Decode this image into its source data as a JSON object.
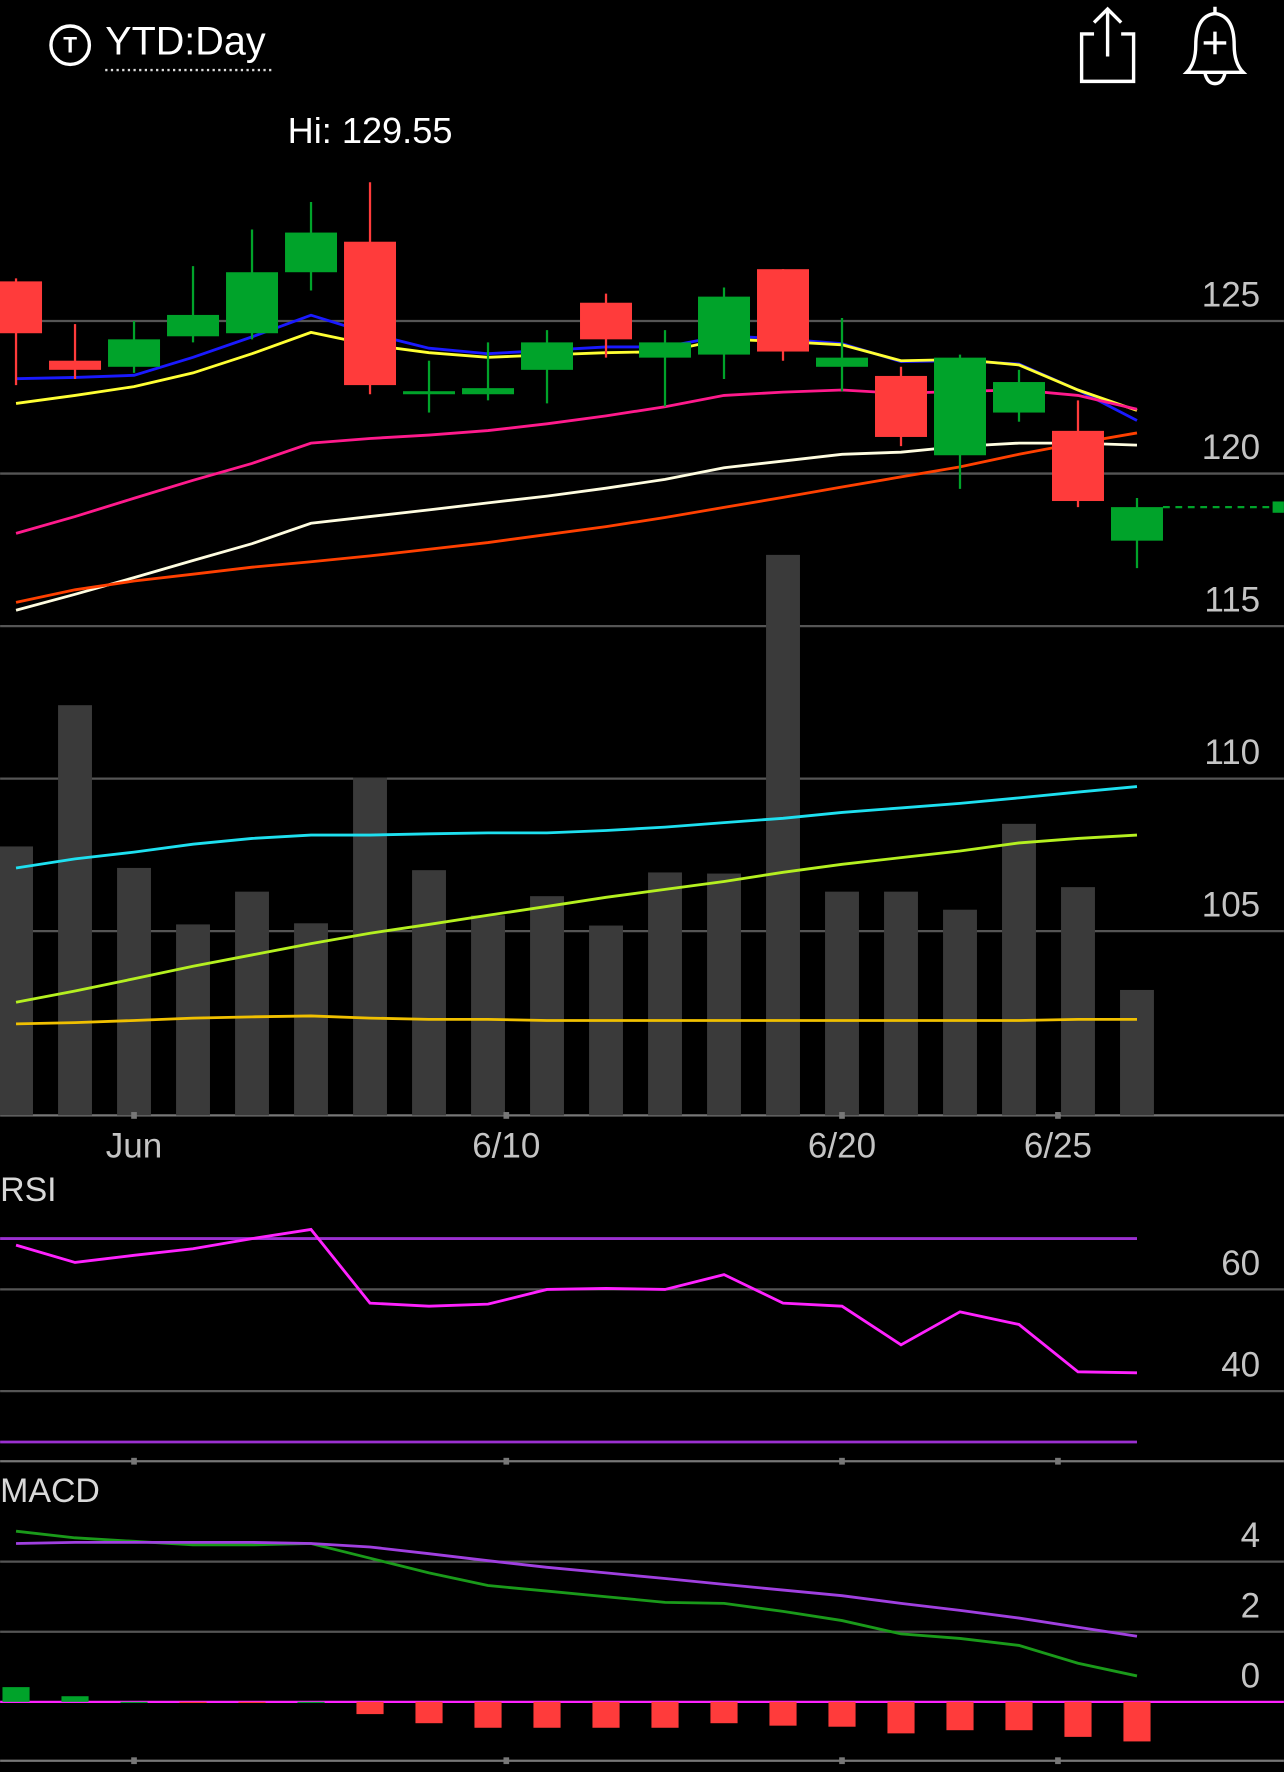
{
  "header": {
    "icon": "T",
    "title": "YTD:Day"
  },
  "chart_data": [
    {
      "type": "candlestick",
      "annotation": "Hi: 129.55",
      "x": [
        0,
        1,
        2,
        3,
        4,
        5,
        6,
        7,
        8,
        9,
        10,
        11,
        12,
        13,
        14,
        15,
        16,
        17,
        18,
        19
      ],
      "xlim": [
        -0.27,
        21.49
      ],
      "xticks": [
        {
          "value": 2,
          "label": "Jun"
        },
        {
          "value": 8.31,
          "label": "6/10"
        },
        {
          "value": 14,
          "label": "6/20"
        },
        {
          "value": 17.66,
          "label": "6/25"
        }
      ],
      "ylim": [
        98.96,
        132.56
      ],
      "yticks": [
        105,
        110,
        115,
        120,
        125
      ],
      "grid": true,
      "up_color": "#00a32a",
      "down_color": "#ff3b3b",
      "open": [
        126.3,
        123.7,
        123.5,
        124.5,
        124.6,
        126.6,
        127.6,
        122.6,
        122.6,
        123.4,
        125.6,
        123.8,
        123.9,
        126.7,
        123.5,
        123.2,
        120.6,
        122.0,
        121.4,
        117.8
      ],
      "high": [
        126.4,
        124.9,
        125.0,
        126.8,
        128.0,
        128.9,
        129.55,
        123.7,
        124.3,
        124.7,
        125.9,
        124.7,
        126.1,
        126.7,
        125.1,
        123.5,
        123.9,
        123.4,
        122.4,
        119.2
      ],
      "low": [
        122.9,
        123.1,
        123.3,
        124.3,
        124.4,
        126.0,
        122.6,
        122.0,
        122.4,
        122.3,
        123.8,
        122.2,
        123.1,
        123.7,
        122.7,
        120.9,
        119.5,
        121.7,
        118.9,
        116.9
      ],
      "close": [
        124.6,
        123.4,
        124.4,
        125.2,
        126.6,
        127.9,
        122.9,
        122.7,
        122.8,
        124.3,
        124.4,
        124.3,
        125.8,
        124.0,
        123.8,
        121.2,
        123.8,
        123.0,
        119.1,
        118.9
      ],
      "last_price": 118.9,
      "last_price_color": "#00a32a",
      "volume": {
        "color": "#3a3a3a",
        "ylim": [
          0,
          907
        ],
        "values": [
          238,
          363,
          219,
          169,
          198,
          170,
          299,
          217,
          177,
          194,
          168,
          215,
          214,
          496,
          198,
          198,
          182,
          258,
          202,
          111
        ]
      },
      "series": [
        {
          "color": "#1a1aff",
          "values": [
            123.11,
            123.15,
            123.22,
            123.81,
            124.48,
            125.19,
            124.59,
            124.11,
            123.93,
            124.04,
            124.15,
            124.15,
            124.52,
            124.41,
            124.26,
            123.67,
            123.7,
            123.59,
            122.74,
            121.74
          ]
        },
        {
          "color": "#ffff33",
          "values": [
            122.3,
            122.56,
            122.85,
            123.3,
            123.93,
            124.63,
            124.22,
            123.96,
            123.81,
            123.89,
            123.96,
            124.0,
            124.41,
            124.33,
            124.22,
            123.7,
            123.74,
            123.56,
            122.74,
            122.07
          ]
        },
        {
          "color": "#ff1a8c",
          "values": [
            118.04,
            118.59,
            119.19,
            119.78,
            120.33,
            121.0,
            121.15,
            121.26,
            121.41,
            121.63,
            121.89,
            122.19,
            122.56,
            122.67,
            122.74,
            122.63,
            122.7,
            122.74,
            122.56,
            122.11
          ]
        },
        {
          "color": "#fffde0",
          "values": [
            115.52,
            116.04,
            116.59,
            117.15,
            117.7,
            118.37,
            118.59,
            118.81,
            119.04,
            119.26,
            119.52,
            119.81,
            120.19,
            120.41,
            120.63,
            120.7,
            120.89,
            121.0,
            121.0,
            120.93
          ]
        },
        {
          "color": "#ff4000",
          "values": [
            115.78,
            116.19,
            116.48,
            116.7,
            116.93,
            117.11,
            117.3,
            117.52,
            117.74,
            118.0,
            118.26,
            118.56,
            118.89,
            119.22,
            119.56,
            119.89,
            120.22,
            120.63,
            121.0,
            121.33
          ]
        },
        {
          "color": "#1ee0f0",
          "values": [
            107.07,
            107.37,
            107.59,
            107.85,
            108.04,
            108.15,
            108.15,
            108.19,
            108.22,
            108.22,
            108.3,
            108.41,
            108.56,
            108.7,
            108.89,
            109.04,
            109.19,
            109.37,
            109.56,
            109.74
          ]
        },
        {
          "color": "#b5f020",
          "values": [
            102.67,
            103.04,
            103.44,
            103.85,
            104.22,
            104.59,
            104.93,
            105.22,
            105.52,
            105.81,
            106.11,
            106.37,
            106.63,
            106.93,
            107.19,
            107.41,
            107.63,
            107.89,
            108.04,
            108.15
          ]
        },
        {
          "color": "#f0c000",
          "values": [
            101.96,
            102.0,
            102.07,
            102.15,
            102.19,
            102.22,
            102.15,
            102.11,
            102.11,
            102.07,
            102.07,
            102.07,
            102.07,
            102.07,
            102.07,
            102.07,
            102.07,
            102.07,
            102.11,
            102.11
          ]
        }
      ]
    },
    {
      "type": "line",
      "title": "RSI",
      "ylim": [
        26.22,
        82.44
      ],
      "yticks": [
        40,
        60
      ],
      "grid": true,
      "levels": [
        70,
        30
      ],
      "level_color": "#9b30d0",
      "series": [
        {
          "color": "#ff22ff",
          "values": [
            68.7,
            65.3,
            66.7,
            68.0,
            70.0,
            71.8,
            57.3,
            56.7,
            57.1,
            60.0,
            60.2,
            60.0,
            62.9,
            57.3,
            56.7,
            49.1,
            55.6,
            53.1,
            43.8,
            43.6
          ]
        }
      ]
    },
    {
      "type": "macd",
      "title": "MACD",
      "ylim": [
        -1.68,
        6.48
      ],
      "yticks": [
        0,
        2,
        4
      ],
      "grid": true,
      "zero_color": "#ff22ff",
      "up_color": "#00a32a",
      "down_color": "#ff3b3b",
      "histogram": [
        0.42,
        0.16,
        0,
        -0.03,
        -0.03,
        0,
        -0.35,
        -0.61,
        -0.74,
        -0.74,
        -0.74,
        -0.74,
        -0.61,
        -0.68,
        -0.71,
        -0.9,
        -0.81,
        -0.81,
        -1.0,
        -1.13
      ],
      "series": [
        {
          "color": "#1a9a1a",
          "values": [
            4.87,
            4.68,
            4.58,
            4.48,
            4.48,
            4.52,
            4.1,
            3.68,
            3.32,
            3.16,
            3.0,
            2.84,
            2.81,
            2.58,
            2.32,
            1.94,
            1.81,
            1.61,
            1.1,
            0.74
          ]
        },
        {
          "color": "#a040e0",
          "values": [
            4.52,
            4.55,
            4.55,
            4.55,
            4.55,
            4.52,
            4.42,
            4.23,
            4.03,
            3.84,
            3.68,
            3.52,
            3.35,
            3.19,
            3.03,
            2.81,
            2.61,
            2.39,
            2.13,
            1.87
          ]
        }
      ]
    }
  ]
}
